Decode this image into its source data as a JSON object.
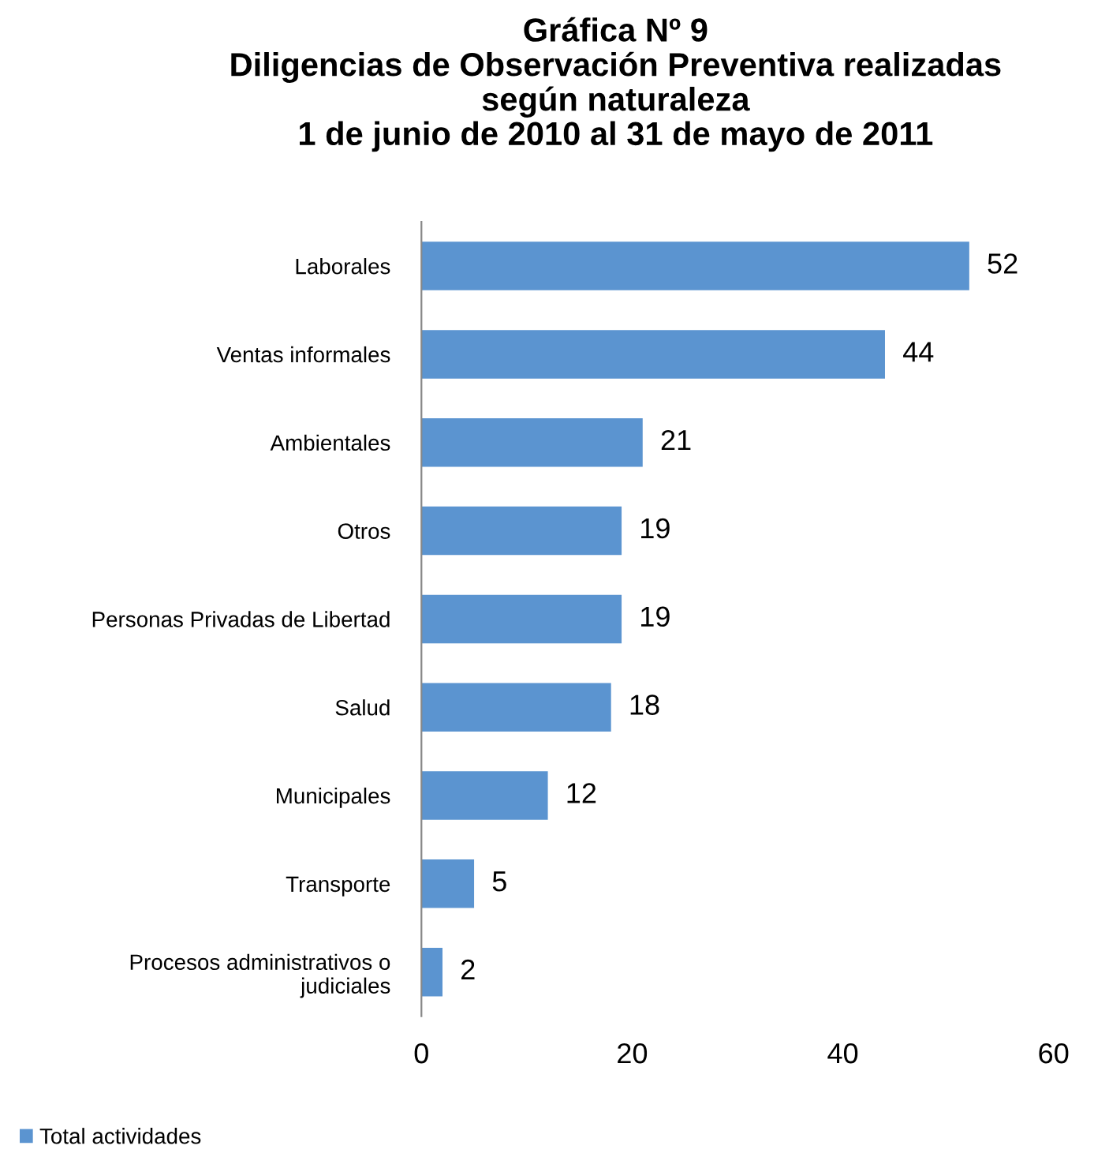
{
  "chart_data": {
    "type": "bar",
    "orientation": "horizontal",
    "title": "Gráfica Nº 9\nDiligencias de Observación Preventiva realizadas\nsegún naturaleza\n1 de junio de 2010 al 31 de mayo de 2011",
    "categories": [
      "Laborales",
      "Ventas informales",
      "Ambientales",
      "Otros",
      "Personas Privadas de Libertad",
      "Salud",
      "Municipales",
      "Transporte",
      "Procesos administrativos o\njudiciales"
    ],
    "series": [
      {
        "name": "Total actividades",
        "color": "#5b94d0",
        "values": [
          52,
          44,
          21,
          19,
          19,
          18,
          12,
          5,
          2
        ]
      }
    ],
    "xlim": [
      0,
      60
    ],
    "xticks": [
      0,
      20,
      40,
      60
    ],
    "data_labels": true,
    "grid": false,
    "legend": "bottom left"
  }
}
